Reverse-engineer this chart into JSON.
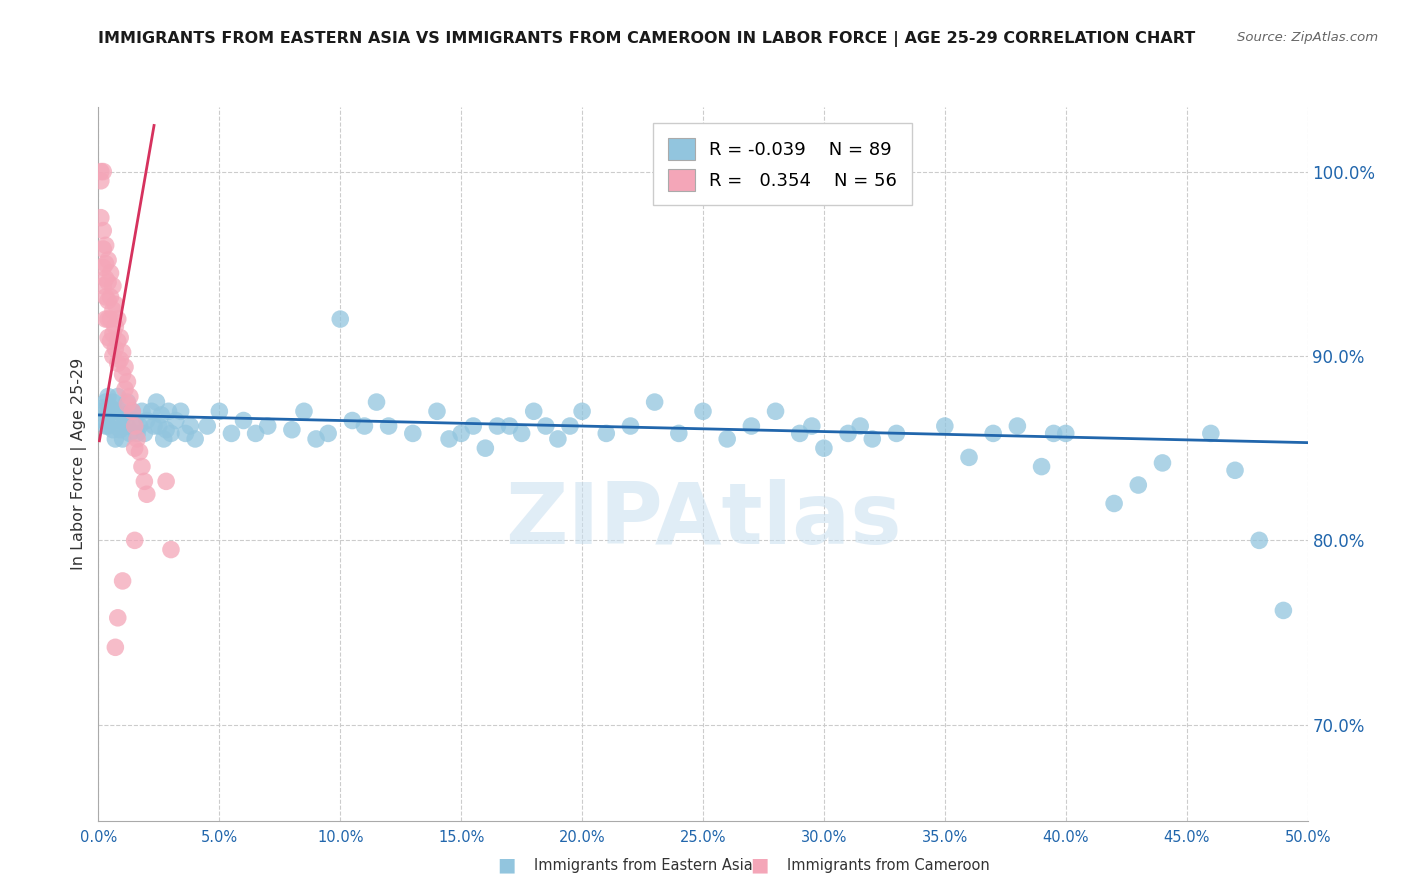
{
  "title": "IMMIGRANTS FROM EASTERN ASIA VS IMMIGRANTS FROM CAMEROON IN LABOR FORCE | AGE 25-29 CORRELATION CHART",
  "source": "Source: ZipAtlas.com",
  "ylabel": "In Labor Force | Age 25-29",
  "R_eastern_asia": -0.039,
  "N_eastern_asia": 89,
  "R_cameroon": 0.354,
  "N_cameroon": 56,
  "legend_label_blue": "Immigrants from Eastern Asia",
  "legend_label_pink": "Immigrants from Cameroon",
  "x_min": 0.0,
  "x_max": 0.5,
  "y_min": 0.648,
  "y_max": 1.035,
  "x_ticks": [
    0.0,
    0.05,
    0.1,
    0.15,
    0.2,
    0.25,
    0.3,
    0.35,
    0.4,
    0.45,
    0.5
  ],
  "y_ticks": [
    0.7,
    0.8,
    0.9,
    1.0
  ],
  "blue_color": "#92c5de",
  "pink_color": "#f4a6b8",
  "blue_line_color": "#2166ac",
  "pink_line_color": "#d6325e",
  "background_color": "#ffffff",
  "watermark_text": "ZIPAtlas",
  "blue_line_x": [
    0.0,
    0.5
  ],
  "blue_line_y": [
    0.868,
    0.853
  ],
  "pink_line_x": [
    0.0004,
    0.023
  ],
  "pink_line_y": [
    0.854,
    1.025
  ],
  "blue_dots": [
    [
      0.001,
      0.87
    ],
    [
      0.002,
      0.872
    ],
    [
      0.002,
      0.865
    ],
    [
      0.003,
      0.862
    ],
    [
      0.003,
      0.875
    ],
    [
      0.004,
      0.868
    ],
    [
      0.004,
      0.878
    ],
    [
      0.004,
      0.862
    ],
    [
      0.005,
      0.872
    ],
    [
      0.005,
      0.865
    ],
    [
      0.006,
      0.875
    ],
    [
      0.006,
      0.86
    ],
    [
      0.007,
      0.87
    ],
    [
      0.007,
      0.855
    ],
    [
      0.008,
      0.865
    ],
    [
      0.008,
      0.878
    ],
    [
      0.009,
      0.86
    ],
    [
      0.009,
      0.87
    ],
    [
      0.01,
      0.862
    ],
    [
      0.01,
      0.855
    ],
    [
      0.011,
      0.868
    ],
    [
      0.012,
      0.862
    ],
    [
      0.012,
      0.875
    ],
    [
      0.013,
      0.858
    ],
    [
      0.014,
      0.87
    ],
    [
      0.015,
      0.865
    ],
    [
      0.016,
      0.858
    ],
    [
      0.017,
      0.862
    ],
    [
      0.018,
      0.87
    ],
    [
      0.019,
      0.858
    ],
    [
      0.02,
      0.865
    ],
    [
      0.022,
      0.87
    ],
    [
      0.023,
      0.862
    ],
    [
      0.024,
      0.875
    ],
    [
      0.025,
      0.862
    ],
    [
      0.026,
      0.868
    ],
    [
      0.027,
      0.855
    ],
    [
      0.028,
      0.86
    ],
    [
      0.029,
      0.87
    ],
    [
      0.03,
      0.858
    ],
    [
      0.032,
      0.865
    ],
    [
      0.034,
      0.87
    ],
    [
      0.036,
      0.858
    ],
    [
      0.038,
      0.862
    ],
    [
      0.04,
      0.855
    ],
    [
      0.045,
      0.862
    ],
    [
      0.05,
      0.87
    ],
    [
      0.055,
      0.858
    ],
    [
      0.06,
      0.865
    ],
    [
      0.065,
      0.858
    ],
    [
      0.07,
      0.862
    ],
    [
      0.08,
      0.86
    ],
    [
      0.085,
      0.87
    ],
    [
      0.09,
      0.855
    ],
    [
      0.095,
      0.858
    ],
    [
      0.1,
      0.92
    ],
    [
      0.105,
      0.865
    ],
    [
      0.11,
      0.862
    ],
    [
      0.115,
      0.875
    ],
    [
      0.12,
      0.862
    ],
    [
      0.13,
      0.858
    ],
    [
      0.14,
      0.87
    ],
    [
      0.145,
      0.855
    ],
    [
      0.15,
      0.858
    ],
    [
      0.155,
      0.862
    ],
    [
      0.16,
      0.85
    ],
    [
      0.165,
      0.862
    ],
    [
      0.17,
      0.862
    ],
    [
      0.175,
      0.858
    ],
    [
      0.18,
      0.87
    ],
    [
      0.185,
      0.862
    ],
    [
      0.19,
      0.855
    ],
    [
      0.195,
      0.862
    ],
    [
      0.2,
      0.87
    ],
    [
      0.21,
      0.858
    ],
    [
      0.22,
      0.862
    ],
    [
      0.23,
      0.875
    ],
    [
      0.24,
      0.858
    ],
    [
      0.25,
      0.87
    ],
    [
      0.26,
      0.855
    ],
    [
      0.27,
      0.862
    ],
    [
      0.28,
      0.87
    ],
    [
      0.29,
      0.858
    ],
    [
      0.295,
      0.862
    ],
    [
      0.3,
      0.85
    ],
    [
      0.31,
      0.858
    ],
    [
      0.315,
      0.862
    ],
    [
      0.32,
      0.855
    ],
    [
      0.33,
      0.858
    ],
    [
      0.35,
      0.862
    ],
    [
      0.36,
      0.845
    ],
    [
      0.37,
      0.858
    ],
    [
      0.38,
      0.862
    ],
    [
      0.39,
      0.84
    ],
    [
      0.395,
      0.858
    ],
    [
      0.4,
      0.858
    ],
    [
      0.42,
      0.82
    ],
    [
      0.43,
      0.83
    ],
    [
      0.44,
      0.842
    ],
    [
      0.46,
      0.858
    ],
    [
      0.47,
      0.838
    ],
    [
      0.48,
      0.8
    ],
    [
      0.49,
      0.762
    ]
  ],
  "pink_dots": [
    [
      0.001,
      1.0
    ],
    [
      0.001,
      0.975
    ],
    [
      0.001,
      0.995
    ],
    [
      0.002,
      0.968
    ],
    [
      0.002,
      0.958
    ],
    [
      0.002,
      1.0
    ],
    [
      0.002,
      0.948
    ],
    [
      0.002,
      0.938
    ],
    [
      0.003,
      0.96
    ],
    [
      0.003,
      0.95
    ],
    [
      0.003,
      0.942
    ],
    [
      0.003,
      0.932
    ],
    [
      0.003,
      0.92
    ],
    [
      0.004,
      0.952
    ],
    [
      0.004,
      0.94
    ],
    [
      0.004,
      0.93
    ],
    [
      0.004,
      0.92
    ],
    [
      0.004,
      0.91
    ],
    [
      0.005,
      0.945
    ],
    [
      0.005,
      0.932
    ],
    [
      0.005,
      0.92
    ],
    [
      0.005,
      0.908
    ],
    [
      0.006,
      0.938
    ],
    [
      0.006,
      0.925
    ],
    [
      0.006,
      0.912
    ],
    [
      0.006,
      0.9
    ],
    [
      0.007,
      0.928
    ],
    [
      0.007,
      0.916
    ],
    [
      0.007,
      0.904
    ],
    [
      0.008,
      0.92
    ],
    [
      0.008,
      0.908
    ],
    [
      0.008,
      0.896
    ],
    [
      0.009,
      0.91
    ],
    [
      0.009,
      0.898
    ],
    [
      0.01,
      0.902
    ],
    [
      0.01,
      0.89
    ],
    [
      0.011,
      0.894
    ],
    [
      0.011,
      0.882
    ],
    [
      0.012,
      0.886
    ],
    [
      0.012,
      0.874
    ],
    [
      0.013,
      0.878
    ],
    [
      0.014,
      0.87
    ],
    [
      0.015,
      0.862
    ],
    [
      0.015,
      0.85
    ],
    [
      0.016,
      0.855
    ],
    [
      0.017,
      0.848
    ],
    [
      0.018,
      0.84
    ],
    [
      0.019,
      0.832
    ],
    [
      0.02,
      0.825
    ],
    [
      0.015,
      0.8
    ],
    [
      0.01,
      0.778
    ],
    [
      0.008,
      0.758
    ],
    [
      0.007,
      0.742
    ],
    [
      0.03,
      0.795
    ],
    [
      0.028,
      0.832
    ]
  ]
}
